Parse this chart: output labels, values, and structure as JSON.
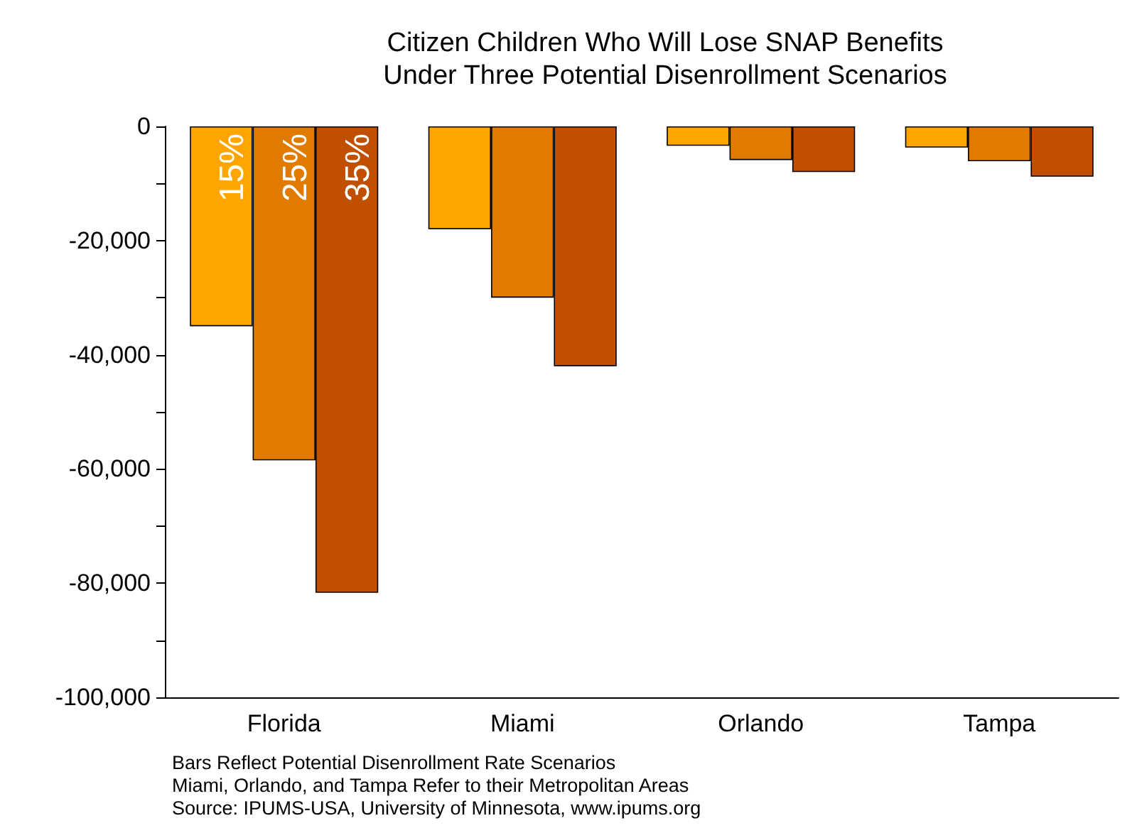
{
  "chart_data": {
    "type": "bar",
    "title": "Citizen Children Who Will Lose SNAP Benefits\nUnder Three Potential Disenrollment Scenarios",
    "categories": [
      "Florida",
      "Miami",
      "Orlando",
      "Tampa"
    ],
    "series": [
      {
        "name": "15%",
        "color": "#fea500",
        "values": [
          -35000,
          -18000,
          -3400,
          -3700
        ]
      },
      {
        "name": "25%",
        "color": "#e17b00",
        "values": [
          -58500,
          -30000,
          -5900,
          -6100
        ]
      },
      {
        "name": "35%",
        "color": "#c05000",
        "values": [
          -81700,
          -42000,
          -8000,
          -8800
        ]
      }
    ],
    "ylim": [
      -100000,
      0
    ],
    "yticks": [
      {
        "value": -100000,
        "label": "-100,000"
      },
      {
        "value": -90000,
        "label": null
      },
      {
        "value": -80000,
        "label": "-80,000"
      },
      {
        "value": -70000,
        "label": null
      },
      {
        "value": -60000,
        "label": "-60,000"
      },
      {
        "value": -50000,
        "label": null
      },
      {
        "value": -40000,
        "label": "-40,000"
      },
      {
        "value": -30000,
        "label": null
      },
      {
        "value": -20000,
        "label": "-20,000"
      },
      {
        "value": -10000,
        "label": null
      },
      0
    ],
    "grid": false,
    "legend": false,
    "annotations": [
      "Bars Reflect Potential Disenrollment Rate Scenarios",
      "Miami, Orlando, and Tampa Refer to their Metropolitan Areas",
      "Source: IPUMS-USA, University of Minnesota, www.ipums.org"
    ]
  }
}
